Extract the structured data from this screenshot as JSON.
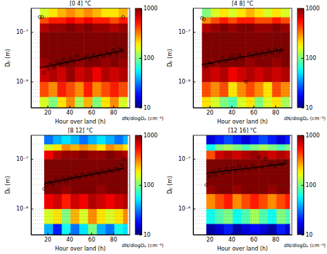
{
  "chart_data": [
    {
      "type": "heatmap",
      "title": "[0 4] °C",
      "x_label": "Hour over land (h)",
      "y_label": "Dₚ (m)",
      "log": "y",
      "grid": true,
      "xlim": [
        5,
        95
      ],
      "xticks": [
        20,
        40,
        60,
        80
      ],
      "ylim": [
        3e-09,
        3e-07
      ],
      "yticks": [
        {
          "value": 1e-08,
          "label": "10⁻⁸"
        },
        {
          "value": 1e-07,
          "label": "10⁻⁷"
        }
      ],
      "yminor": [
        4e-09,
        5e-09,
        6e-09,
        7e-09,
        8e-09,
        9e-09,
        2e-08,
        3e-08,
        4e-08,
        5e-08,
        6e-08,
        7e-08,
        8e-08,
        9e-08,
        2e-07
      ],
      "x_bins": [
        13,
        21,
        29,
        37,
        45,
        53,
        61,
        69,
        77,
        85,
        93
      ],
      "y_bins": [
        3e-09,
        5e-09,
        1e-08,
        2e-08,
        3e-08,
        5e-08,
        1e-07,
        1.5e-07,
        2e-07,
        3e-07
      ],
      "z": [
        [
          150,
          100,
          200,
          300,
          120,
          250,
          100,
          200,
          300,
          150
        ],
        [
          400,
          300,
          500,
          400,
          300,
          500,
          300,
          400,
          500,
          400
        ],
        [
          700,
          800,
          700,
          900,
          700,
          800,
          600,
          800,
          700,
          800
        ],
        [
          900,
          1000,
          1000,
          1000,
          900,
          1000,
          1000,
          900,
          1000,
          900
        ],
        [
          1000,
          1000,
          1000,
          1000,
          1000,
          1000,
          1000,
          1000,
          1000,
          1000
        ],
        [
          1000,
          1000,
          1000,
          1000,
          1000,
          1000,
          1000,
          1000,
          1000,
          1000
        ],
        [
          800,
          900,
          900,
          1000,
          900,
          1000,
          900,
          900,
          800,
          900
        ],
        [
          400,
          500,
          500,
          600,
          500,
          600,
          500,
          500,
          400,
          500
        ],
        [
          150,
          200,
          250,
          300,
          250,
          300,
          250,
          200,
          200,
          250
        ]
      ],
      "colorbar": {
        "label": "dN/dlogDₚ (cm⁻³)",
        "log": true,
        "lim": [
          10,
          1000
        ],
        "ticks": [
          10,
          100,
          1000
        ]
      },
      "series": [
        {
          "type": "scatter",
          "marker": "circle",
          "color": "#000000",
          "x": [
            13,
            15,
            17,
            20,
            23,
            26,
            29,
            32,
            35,
            38,
            41,
            44,
            47,
            50,
            53,
            56,
            59,
            62,
            65,
            68,
            71,
            74,
            77,
            80,
            83,
            86,
            88,
            89
          ],
          "values": [
            2e-07,
            2e-07,
            1.5e-08,
            1.8e-08,
            2.2e-08,
            1.9e-08,
            2.5e-08,
            2.3e-08,
            2.8e-08,
            2.4e-08,
            2.9e-08,
            2.6e-08,
            3.2e-08,
            2.7e-08,
            3e-08,
            3.3e-08,
            2.8e-08,
            3.5e-08,
            3.1e-08,
            3.7e-08,
            3.3e-08,
            3.9e-08,
            3.6e-08,
            4.3e-08,
            3.8e-08,
            4.5e-08,
            4.2e-08,
            2e-07
          ]
        },
        {
          "type": "line",
          "line_style": "solid",
          "color": "#000000",
          "x": [
            13,
            89
          ],
          "values": [
            1.9e-08,
            4.2e-08
          ]
        }
      ]
    },
    {
      "type": "heatmap",
      "title": "[4 8] °C",
      "x_label": "Hour over land (h)",
      "y_label": "Dₚ (m)",
      "log": "y",
      "grid": true,
      "xlim": [
        5,
        95
      ],
      "xticks": [
        20,
        40,
        60,
        80
      ],
      "ylim": [
        3e-09,
        3e-07
      ],
      "yticks": [
        {
          "value": 1e-08,
          "label": "10⁻⁸"
        },
        {
          "value": 1e-07,
          "label": "10⁻⁷"
        }
      ],
      "yminor": [
        4e-09,
        5e-09,
        6e-09,
        7e-09,
        8e-09,
        9e-09,
        2e-08,
        3e-08,
        4e-08,
        5e-08,
        6e-08,
        7e-08,
        8e-08,
        9e-08,
        2e-07
      ],
      "x_bins": [
        13,
        21,
        29,
        37,
        45,
        53,
        61,
        69,
        77,
        85,
        93
      ],
      "y_bins": [
        3e-09,
        5e-09,
        1e-08,
        2e-08,
        3e-08,
        5e-08,
        1e-07,
        1.5e-07,
        2e-07,
        3e-07
      ],
      "z": [
        [
          200,
          150,
          100,
          80,
          150,
          200,
          100,
          150,
          200,
          120
        ],
        [
          400,
          300,
          400,
          200,
          300,
          400,
          300,
          200,
          400,
          300
        ],
        [
          800,
          700,
          800,
          600,
          700,
          800,
          700,
          800,
          700,
          800
        ],
        [
          1000,
          900,
          1000,
          1000,
          1000,
          900,
          1000,
          1000,
          900,
          1000
        ],
        [
          1000,
          1000,
          1000,
          1000,
          1000,
          1000,
          1000,
          1000,
          1000,
          1000
        ],
        [
          1000,
          1000,
          1000,
          1000,
          1000,
          1000,
          1000,
          1000,
          1000,
          1000
        ],
        [
          800,
          900,
          1000,
          900,
          1000,
          1000,
          900,
          900,
          1000,
          900
        ],
        [
          300,
          400,
          500,
          400,
          500,
          500,
          400,
          400,
          500,
          400
        ],
        [
          100,
          150,
          200,
          150,
          200,
          250,
          200,
          150,
          200,
          150
        ]
      ],
      "colorbar": {
        "label": "dN/dlogDₚ (cm⁻³)",
        "log": true,
        "lim": [
          10,
          1000
        ],
        "ticks": [
          10,
          100,
          1000
        ]
      },
      "series": [
        {
          "type": "scatter",
          "marker": "circle",
          "color": "#000000",
          "x": [
            13,
            15,
            17,
            20,
            23,
            26,
            29,
            32,
            35,
            38,
            41,
            44,
            47,
            50,
            53,
            56,
            59,
            62,
            65,
            68,
            71,
            74,
            77,
            80,
            83,
            86
          ],
          "values": [
            1.9e-07,
            1.8e-07,
            2e-08,
            2.4e-08,
            2.2e-08,
            2.7e-08,
            2.5e-08,
            3e-08,
            2.6e-08,
            2.9e-08,
            3.3e-08,
            2.8e-08,
            3.4e-08,
            3e-08,
            1e-08,
            3.6e-08,
            3.2e-08,
            3.8e-08,
            3.4e-08,
            4e-08,
            3.6e-08,
            4.2e-08,
            3.8e-08,
            4.5e-08,
            4e-08,
            4.3e-08
          ]
        },
        {
          "type": "line",
          "line_style": "solid",
          "color": "#000000",
          "x": [
            13,
            86
          ],
          "values": [
            2.2e-08,
            4.4e-08
          ]
        }
      ]
    },
    {
      "type": "heatmap",
      "title": "[8 12] °C",
      "x_label": "Hour over land (h)",
      "y_label": "Dₚ (m)",
      "log": "y",
      "grid": true,
      "xlim": [
        5,
        95
      ],
      "xticks": [
        20,
        40,
        60,
        80
      ],
      "ylim": [
        3e-09,
        3e-07
      ],
      "yticks": [
        {
          "value": 1e-08,
          "label": "10⁻⁸"
        },
        {
          "value": 1e-07,
          "label": "10⁻⁷"
        }
      ],
      "yminor": [
        4e-09,
        5e-09,
        6e-09,
        7e-09,
        8e-09,
        9e-09,
        2e-08,
        3e-08,
        4e-08,
        5e-08,
        6e-08,
        7e-08,
        8e-08,
        9e-08,
        2e-07
      ],
      "x_bins": [
        17,
        25,
        33,
        41,
        49,
        57,
        65,
        73,
        81,
        89,
        93
      ],
      "y_bins": [
        3e-09,
        5e-09,
        1e-08,
        2e-08,
        3e-08,
        5e-08,
        1e-07,
        1.5e-07,
        2e-07,
        3e-07
      ],
      "z": [
        [
          40,
          20,
          60,
          30,
          50,
          100,
          40,
          30,
          60,
          50
        ],
        [
          150,
          200,
          100,
          250,
          150,
          300,
          200,
          150,
          200,
          300
        ],
        [
          600,
          700,
          500,
          700,
          600,
          800,
          700,
          600,
          700,
          800
        ],
        [
          1000,
          1000,
          900,
          1000,
          1000,
          1000,
          900,
          1000,
          1000,
          1000
        ],
        [
          1000,
          1000,
          1000,
          1000,
          1000,
          1000,
          1000,
          1000,
          1000,
          1000
        ],
        [
          1000,
          1000,
          1000,
          1000,
          1000,
          1000,
          1000,
          1000,
          1000,
          1000
        ],
        [
          600,
          800,
          900,
          900,
          1000,
          900,
          900,
          1000,
          900,
          800
        ],
        [
          150,
          200,
          300,
          250,
          300,
          250,
          200,
          300,
          250,
          200
        ],
        [
          30,
          40,
          50,
          40,
          30,
          40,
          50,
          40,
          30,
          40
        ]
      ],
      "colorbar": {
        "label": "dN/dlogDₚ (cm⁻³)",
        "log": true,
        "lim": [
          10,
          1000
        ],
        "ticks": [
          10,
          100,
          1000
        ]
      },
      "series": [
        {
          "type": "scatter",
          "marker": "circle",
          "color": "#000000",
          "x": [
            17,
            19,
            22,
            25,
            28,
            31,
            34,
            37,
            40,
            43,
            46,
            49,
            52,
            55,
            58,
            61,
            64,
            67,
            70,
            73,
            76,
            79,
            82,
            85,
            88,
            90
          ],
          "values": [
            2.5e-08,
            3e-08,
            3.4e-08,
            3.2e-08,
            3.8e-08,
            3.5e-08,
            4e-08,
            3.7e-08,
            4.3e-08,
            4e-08,
            4.6e-08,
            4.2e-08,
            4.9e-08,
            4.5e-08,
            5.2e-08,
            4.8e-08,
            5.5e-08,
            5e-08,
            5.8e-08,
            5.3e-08,
            6e-08,
            5.6e-08,
            6.4e-08,
            6e-08,
            7.5e-08,
            1e-07
          ]
        },
        {
          "type": "line",
          "line_style": "solid",
          "color": "#000000",
          "x": [
            17,
            90
          ],
          "values": [
            3.2e-08,
            6.5e-08
          ]
        }
      ]
    },
    {
      "type": "heatmap",
      "title": "[12 16] °C",
      "x_label": "Hour over land (h)",
      "y_label": "Dₚ (m)",
      "log": "y",
      "grid": true,
      "xlim": [
        5,
        95
      ],
      "xticks": [
        20,
        40,
        60,
        80
      ],
      "ylim": [
        3e-09,
        3e-07
      ],
      "yticks": [
        {
          "value": 1e-08,
          "label": "10⁻⁸"
        },
        {
          "value": 1e-07,
          "label": "10⁻⁷"
        }
      ],
      "yminor": [
        4e-09,
        5e-09,
        6e-09,
        7e-09,
        8e-09,
        9e-09,
        2e-08,
        3e-08,
        4e-08,
        5e-08,
        6e-08,
        7e-08,
        8e-08,
        9e-08,
        2e-07
      ],
      "x_bins": [
        17,
        25,
        33,
        41,
        49,
        57,
        65,
        73,
        81,
        89,
        93
      ],
      "y_bins": [
        3e-09,
        5e-09,
        1e-08,
        2e-08,
        3e-08,
        5e-08,
        1e-07,
        1.5e-07,
        2e-07,
        3e-07
      ],
      "z": [
        [
          12,
          15,
          20,
          12,
          15,
          18,
          15,
          12,
          20,
          15
        ],
        [
          60,
          80,
          100,
          60,
          80,
          120,
          80,
          60,
          100,
          80
        ],
        [
          300,
          400,
          500,
          300,
          400,
          500,
          400,
          300,
          400,
          500
        ],
        [
          900,
          1000,
          1000,
          900,
          1000,
          1000,
          1000,
          900,
          1000,
          1000
        ],
        [
          1000,
          1000,
          1000,
          1000,
          1000,
          1000,
          1000,
          1000,
          1000,
          1000
        ],
        [
          1000,
          1000,
          1000,
          1000,
          1000,
          1000,
          1000,
          1000,
          1000,
          1000
        ],
        [
          400,
          700,
          800,
          700,
          800,
          900,
          800,
          700,
          800,
          700
        ],
        [
          60,
          100,
          120,
          100,
          80,
          100,
          120,
          100,
          80,
          100
        ],
        [
          15,
          20,
          25,
          20,
          15,
          20,
          25,
          20,
          15,
          20
        ]
      ],
      "colorbar": {
        "label": "dN/dlogDₚ (cm⁻³)",
        "log": true,
        "lim": [
          10,
          1000
        ],
        "ticks": [
          10,
          100,
          1000
        ]
      },
      "series": [
        {
          "type": "scatter",
          "marker": "circle",
          "color": "#000000",
          "x": [
            17,
            20,
            23,
            26,
            29,
            32,
            35,
            38,
            41,
            44,
            47,
            50,
            53,
            56,
            59,
            62,
            65,
            68,
            71,
            74,
            77,
            80,
            83,
            86,
            89
          ],
          "values": [
            3e-08,
            4.5e-08,
            5.5e-08,
            4.8e-08,
            6e-08,
            5.2e-08,
            6.3e-08,
            5.5e-08,
            6.5e-08,
            5.8e-08,
            7e-08,
            6e-08,
            6.8e-08,
            6.2e-08,
            7.5e-08,
            6.5e-08,
            1.1e-07,
            7e-08,
            1e-07,
            7.5e-08,
            8.2e-08,
            7.2e-08,
            8.5e-08,
            7.8e-08,
            9e-08
          ]
        },
        {
          "type": "line",
          "line_style": "solid",
          "color": "#000000",
          "x": [
            17,
            90
          ],
          "values": [
            5.2e-08,
            8e-08
          ]
        }
      ]
    }
  ]
}
